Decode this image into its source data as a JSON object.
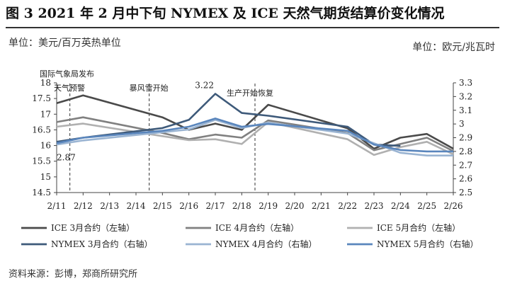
{
  "header": {
    "title": "图 3  2021 年 2 月中下旬 NYMEX 及 ICE 天然气期货结算价变化情况",
    "unit_left": "单位：美元/百万英热单位",
    "unit_right": "单位：欧元/兆瓦时",
    "source": "资料来源：彭博，郑商所研究所"
  },
  "chart_data": {
    "type": "line",
    "categories": [
      "2/11",
      "2/12",
      "2/13",
      "2/14",
      "2/15",
      "2/16",
      "2/17",
      "2/18",
      "2/19",
      "2/20",
      "2/21",
      "2/22",
      "2/23",
      "2/24",
      "2/25",
      "2/26"
    ],
    "y_left": {
      "min": 14.5,
      "max": 18,
      "ticks": [
        14.5,
        15,
        15.5,
        16,
        16.5,
        17,
        17.5,
        18
      ]
    },
    "y_right": {
      "min": 2.5,
      "max": 3.3,
      "ticks": [
        2.5,
        2.6,
        2.7,
        2.8,
        2.9,
        3.0,
        3.1,
        3.2,
        3.3
      ]
    },
    "right_tick_labels": [
      "2.5",
      "2.6",
      "2.7",
      "2.8",
      "2.9",
      "3",
      "3.1",
      "3.2",
      "3.3"
    ],
    "series": [
      {
        "name": "ICE 3月合约（左轴）",
        "axis": "left",
        "color": "#4a4a4a",
        "values": [
          17.35,
          17.6,
          null,
          null,
          16.9,
          16.5,
          16.7,
          16.5,
          17.3,
          null,
          null,
          16.55,
          15.9,
          16.25,
          16.37,
          15.9
        ]
      },
      {
        "name": "ICE 4月合约（左轴）",
        "axis": "left",
        "color": "#808080",
        "values": [
          16.75,
          16.9,
          null,
          null,
          16.4,
          16.2,
          16.35,
          16.25,
          16.8,
          null,
          null,
          16.4,
          15.85,
          16.05,
          16.25,
          15.82
        ]
      },
      {
        "name": "ICE 5月合约（左轴）",
        "axis": "left",
        "color": "#b0b0b0",
        "values": [
          16.6,
          16.7,
          null,
          null,
          16.3,
          16.17,
          16.2,
          16.05,
          16.75,
          null,
          null,
          16.2,
          15.7,
          15.95,
          16.12,
          15.72
        ]
      },
      {
        "name": "NYMEX 3月合约（右轴）",
        "axis": "right",
        "color": "#3e5a7a",
        "values": [
          2.87,
          2.9,
          null,
          null,
          2.97,
          3.03,
          3.22,
          3.08,
          3.06,
          null,
          null,
          2.98,
          2.85,
          2.84,
          null,
          null
        ]
      },
      {
        "name": "NYMEX 4月合约（右轴）",
        "axis": "right",
        "color": "#9ab4d2",
        "values": [
          2.85,
          2.88,
          null,
          null,
          2.94,
          2.96,
          3.03,
          2.97,
          3.01,
          null,
          null,
          2.93,
          2.86,
          2.79,
          2.77,
          2.77
        ]
      },
      {
        "name": "NYMEX 5月合约（右轴）",
        "axis": "right",
        "color": "#5a86bd",
        "values": [
          2.86,
          2.9,
          null,
          null,
          2.95,
          2.98,
          3.04,
          2.98,
          3.0,
          null,
          null,
          2.95,
          2.85,
          2.81,
          2.8,
          2.8
        ]
      }
    ],
    "annotations": [
      {
        "text_line1": "国际气象局发布",
        "text_line2": "天气预警",
        "category": "2/11"
      },
      {
        "text_line1": "暴风雪开始",
        "text_line2": "",
        "category": "2/14"
      },
      {
        "text_line1": "生产开始恢复",
        "text_line2": "",
        "category": "2/18"
      }
    ],
    "data_labels": [
      {
        "text": "3.22",
        "series": 3,
        "category": "2/17"
      },
      {
        "text": "2.87",
        "series": 3,
        "category": "2/11"
      }
    ],
    "legend_position": "bottom",
    "grid": false
  }
}
